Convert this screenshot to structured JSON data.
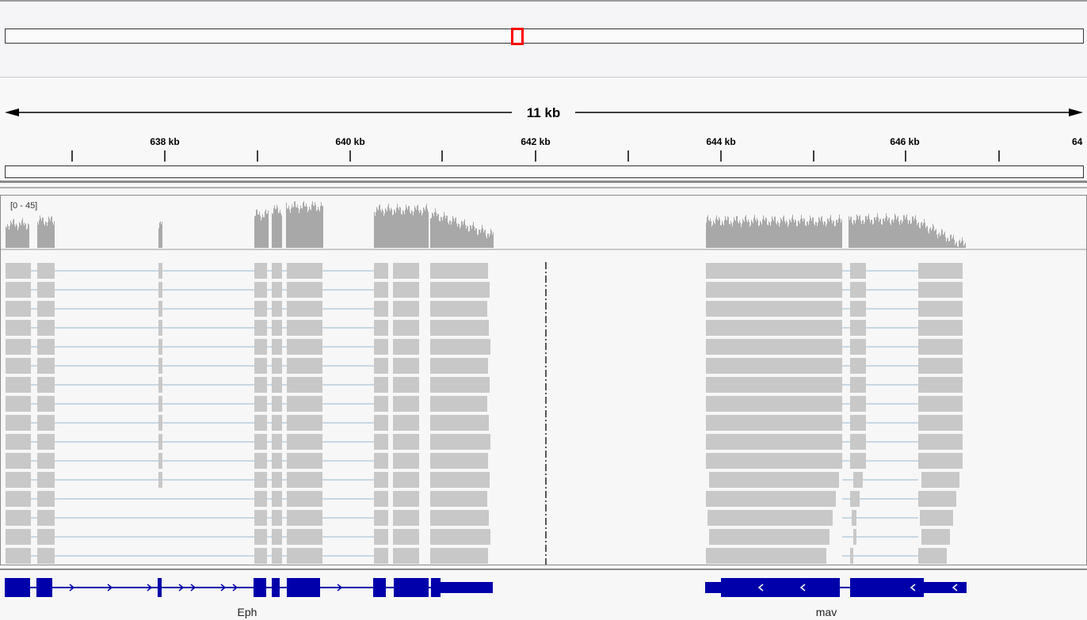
{
  "ruler": {
    "span_label": "11 kb",
    "ticks": [
      "638 kb",
      "640 kb",
      "642 kb",
      "644 kb",
      "646 kb",
      "64"
    ]
  },
  "coverage": {
    "range_label": "[0 - 45]",
    "color": "#a8a8a8"
  },
  "alignment": {
    "read_color": "#c8c8c8",
    "intron_color": "#aac4d8",
    "rows": 16
  },
  "genes": [
    {
      "name": "Eph",
      "strand": "+"
    },
    {
      "name": "mav",
      "strand": "-"
    }
  ],
  "colors": {
    "gene": "#0000aa",
    "region_marker": "#ff0000"
  }
}
